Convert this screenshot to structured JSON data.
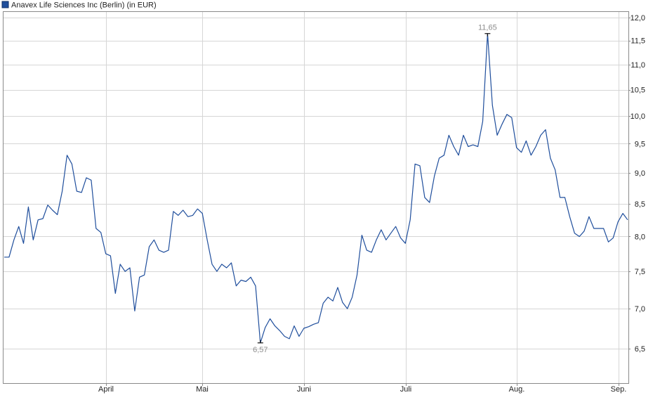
{
  "chart_data": {
    "type": "line",
    "title": "Anavex Life Sciences Inc (Berlin) (in EUR)",
    "y_axis": {
      "scale": "log",
      "position": "right",
      "ticks": [
        6.5,
        7.0,
        7.5,
        8.0,
        8.5,
        9.0,
        9.5,
        10.0,
        10.5,
        11.0,
        11.5,
        12.0
      ],
      "tick_labels": [
        "6,5",
        "7,0",
        "7,5",
        "8,0",
        "8,5",
        "9,0",
        "9,5",
        "10,0",
        "10,5",
        "11,0",
        "11,5",
        "12,0"
      ]
    },
    "x_axis": {
      "month_ticks": [
        "April",
        "Mai",
        "Juni",
        "Juli",
        "Aug.",
        "Sep."
      ]
    },
    "grid": true,
    "legend": "top-left",
    "series": [
      {
        "name": "Anavex Life Sciences Inc (Berlin) (in EUR)",
        "color": "#1f4e9c",
        "values": [
          7.7,
          7.7,
          7.95,
          8.15,
          7.9,
          8.45,
          7.95,
          8.25,
          8.27,
          8.48,
          8.4,
          8.33,
          8.7,
          9.3,
          9.15,
          8.7,
          8.68,
          8.92,
          8.88,
          8.12,
          8.06,
          7.75,
          7.72,
          7.2,
          7.6,
          7.5,
          7.55,
          6.97,
          7.42,
          7.45,
          7.85,
          7.95,
          7.8,
          7.77,
          7.8,
          8.38,
          8.32,
          8.4,
          8.3,
          8.32,
          8.42,
          8.35,
          7.95,
          7.6,
          7.5,
          7.6,
          7.55,
          7.62,
          7.3,
          7.38,
          7.36,
          7.42,
          7.3,
          6.57,
          6.76,
          6.87,
          6.78,
          6.72,
          6.65,
          6.62,
          6.78,
          6.65,
          6.75,
          6.77,
          6.8,
          6.82,
          7.07,
          7.15,
          7.1,
          7.28,
          7.08,
          7.0,
          7.15,
          7.45,
          8.02,
          7.8,
          7.77,
          7.95,
          8.1,
          7.95,
          8.05,
          8.15,
          7.98,
          7.9,
          8.25,
          9.15,
          9.12,
          8.6,
          8.52,
          8.95,
          9.25,
          9.3,
          9.65,
          9.45,
          9.3,
          9.65,
          9.45,
          9.48,
          9.45,
          9.9,
          11.65,
          10.2,
          9.65,
          9.85,
          10.03,
          9.97,
          9.43,
          9.35,
          9.55,
          9.3,
          9.45,
          9.65,
          9.75,
          9.25,
          9.05,
          8.6,
          8.6,
          8.3,
          8.05,
          8.0,
          8.08,
          8.3,
          8.12,
          8.12,
          8.12,
          7.92,
          7.98,
          8.22,
          8.35,
          8.25
        ]
      }
    ],
    "annotations": [
      {
        "label": "11,65",
        "value": 11.65,
        "type": "max",
        "index": 100
      },
      {
        "label": "6,57",
        "value": 6.57,
        "type": "min",
        "index": 53
      }
    ]
  }
}
